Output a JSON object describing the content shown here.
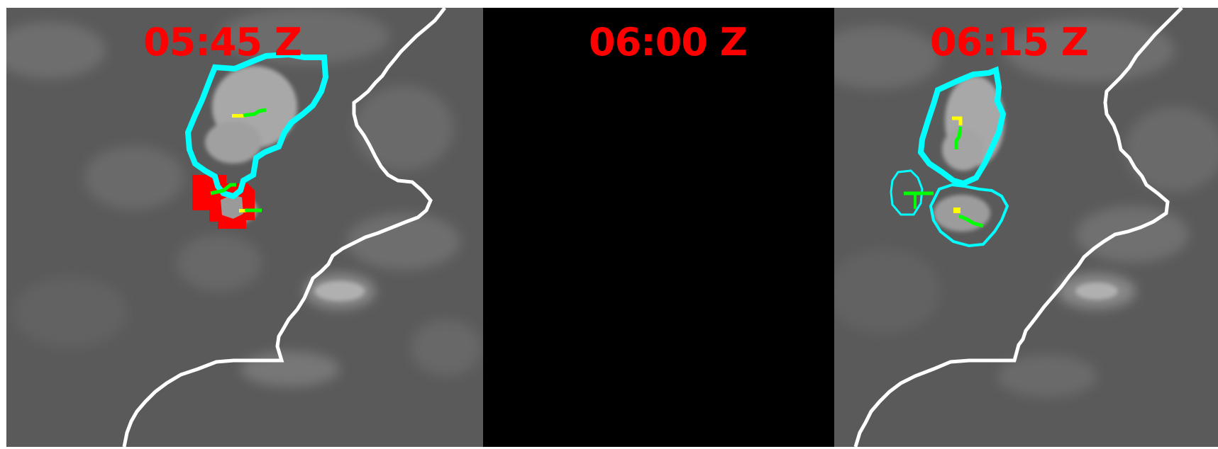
{
  "panels": [
    {
      "time_label": "05:45 Z",
      "status": "imagery"
    },
    {
      "time_label": "06:00 Z",
      "status": "no-data"
    },
    {
      "time_label": "06:15 Z",
      "status": "imagery"
    }
  ],
  "colors": {
    "label": "#ff0000",
    "background_gray": "#5a5a5a",
    "missing_frame": "#000000",
    "coastline": "#ffffff",
    "cell_contour": "#00ffff",
    "new_cell_fill": "#ff0000",
    "track_vector": "#00ff00",
    "track_origin": "#ffff00"
  },
  "icons": {
    "coastline": "white-boundary-line",
    "storm_cell": "cyan-contour",
    "new_cell": "red-filled-region",
    "motion": "green-yellow-vector"
  }
}
